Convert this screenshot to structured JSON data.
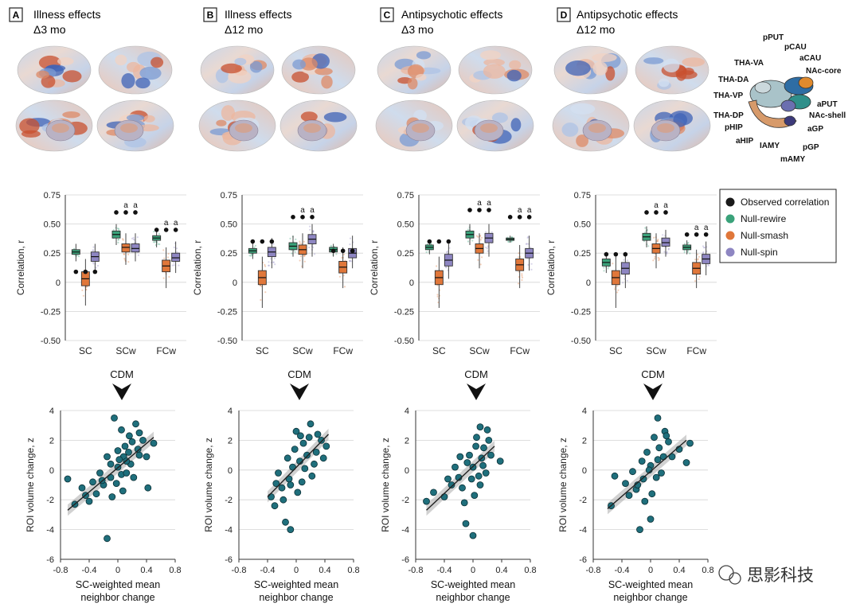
{
  "panels": [
    {
      "letter": "A",
      "title": "Illness effects",
      "subtitle": "Δ3 mo"
    },
    {
      "letter": "B",
      "title": "Illness effects",
      "subtitle": "Δ12 mo"
    },
    {
      "letter": "C",
      "title": "Antipsychotic effects",
      "subtitle": "Δ3 mo"
    },
    {
      "letter": "D",
      "title": "Antipsychotic effects",
      "subtitle": "Δ12 mo"
    }
  ],
  "subcortical_labels": [
    "pPUT",
    "pCAU",
    "aCAU",
    "THA-VA",
    "NAc-core",
    "THA-DA",
    "THA-VP",
    "aPUT",
    "NAc-shell",
    "THA-DP",
    "aGP",
    "pHIP",
    "aHIP",
    "IAMY",
    "pGP",
    "mAMY"
  ],
  "legend": [
    {
      "label": "Observed correlation",
      "color": "#1a1a1a"
    },
    {
      "label": "Null-rewire",
      "color": "#3aa27a"
    },
    {
      "label": "Null-smash",
      "color": "#e0773a"
    },
    {
      "label": "Null-spin",
      "color": "#8e86c2"
    }
  ],
  "cdm_label": "CDM",
  "significance_mark": "a",
  "watermark": "思影科技",
  "chart_data": [
    {
      "type": "box",
      "panel": "A",
      "categories": [
        "SC",
        "SCw",
        "FCw"
      ],
      "ylabel": "Correlation, r",
      "ylim": [
        -0.5,
        0.75
      ],
      "yticks": [
        "0.75",
        "0.50",
        "0.25",
        "0",
        "-0.25",
        "-0.50"
      ],
      "observed": [
        0.09,
        0.6,
        0.45
      ],
      "significant": [
        false,
        true,
        true
      ],
      "series": [
        {
          "name": "Null-rewire",
          "median": [
            0.26,
            0.41,
            0.38
          ],
          "q1": [
            0.24,
            0.38,
            0.36
          ],
          "q3": [
            0.28,
            0.44,
            0.4
          ],
          "lo": [
            0.18,
            0.32,
            0.3
          ],
          "hi": [
            0.33,
            0.5,
            0.45
          ]
        },
        {
          "name": "Null-smash",
          "median": [
            0.03,
            0.3,
            0.14
          ],
          "q1": [
            -0.03,
            0.26,
            0.09
          ],
          "q3": [
            0.09,
            0.33,
            0.19
          ],
          "lo": [
            -0.2,
            0.15,
            -0.05
          ],
          "hi": [
            0.2,
            0.42,
            0.3
          ]
        },
        {
          "name": "Null-spin",
          "median": [
            0.22,
            0.29,
            0.21
          ],
          "q1": [
            0.18,
            0.26,
            0.18
          ],
          "q3": [
            0.26,
            0.33,
            0.25
          ],
          "lo": [
            0.08,
            0.18,
            0.08
          ],
          "hi": [
            0.33,
            0.42,
            0.35
          ]
        }
      ]
    },
    {
      "type": "box",
      "panel": "B",
      "categories": [
        "SC",
        "SCw",
        "FCw"
      ],
      "ylabel": "Correlation, r",
      "ylim": [
        -0.5,
        0.75
      ],
      "yticks": [
        "0.75",
        "0.50",
        "0.25",
        "0",
        "-0.25",
        "-0.50"
      ],
      "observed": [
        0.35,
        0.56,
        0.27
      ],
      "significant": [
        false,
        true,
        false
      ],
      "series": [
        {
          "name": "Null-rewire",
          "median": [
            0.27,
            0.31,
            0.28
          ],
          "q1": [
            0.25,
            0.28,
            0.26
          ],
          "q3": [
            0.29,
            0.34,
            0.3
          ],
          "lo": [
            0.2,
            0.22,
            0.22
          ],
          "hi": [
            0.34,
            0.4,
            0.33
          ]
        },
        {
          "name": "Null-smash",
          "median": [
            0.04,
            0.28,
            0.13
          ],
          "q1": [
            -0.02,
            0.24,
            0.08
          ],
          "q3": [
            0.1,
            0.32,
            0.18
          ],
          "lo": [
            -0.22,
            0.12,
            -0.05
          ],
          "hi": [
            0.22,
            0.42,
            0.3
          ]
        },
        {
          "name": "Null-spin",
          "median": [
            0.26,
            0.37,
            0.25
          ],
          "q1": [
            0.22,
            0.33,
            0.21
          ],
          "q3": [
            0.3,
            0.41,
            0.29
          ],
          "lo": [
            0.12,
            0.22,
            0.12
          ],
          "hi": [
            0.38,
            0.5,
            0.4
          ]
        }
      ]
    },
    {
      "type": "box",
      "panel": "C",
      "categories": [
        "SC",
        "SCw",
        "FCw"
      ],
      "ylabel": "Correlation, r",
      "ylim": [
        -0.5,
        0.75
      ],
      "yticks": [
        "0.75",
        "0.50",
        "0.25",
        "0",
        "-0.25",
        "-0.50"
      ],
      "observed": [
        0.35,
        0.62,
        0.56
      ],
      "significant": [
        false,
        true,
        true
      ],
      "series": [
        {
          "name": "Null-rewire",
          "median": [
            0.3,
            0.41,
            0.37
          ],
          "q1": [
            0.28,
            0.38,
            0.36
          ],
          "q3": [
            0.32,
            0.44,
            0.38
          ],
          "lo": [
            0.24,
            0.32,
            0.34
          ],
          "hi": [
            0.36,
            0.5,
            0.4
          ]
        },
        {
          "name": "Null-smash",
          "median": [
            0.04,
            0.29,
            0.15
          ],
          "q1": [
            -0.02,
            0.25,
            0.1
          ],
          "q3": [
            0.1,
            0.33,
            0.2
          ],
          "lo": [
            -0.22,
            0.12,
            -0.05
          ],
          "hi": [
            0.22,
            0.42,
            0.32
          ]
        },
        {
          "name": "Null-spin",
          "median": [
            0.19,
            0.38,
            0.25
          ],
          "q1": [
            0.14,
            0.34,
            0.21
          ],
          "q3": [
            0.24,
            0.42,
            0.29
          ],
          "lo": [
            0.03,
            0.22,
            0.1
          ],
          "hi": [
            0.33,
            0.5,
            0.4
          ]
        }
      ]
    },
    {
      "type": "box",
      "panel": "D",
      "categories": [
        "SC",
        "SCw",
        "FCw"
      ],
      "ylabel": "Correlation, r",
      "ylim": [
        -0.5,
        0.75
      ],
      "yticks": [
        "0.75",
        "0.50",
        "0.25",
        "0",
        "-0.25",
        "-0.50"
      ],
      "observed": [
        0.24,
        0.6,
        0.41
      ],
      "significant": [
        false,
        true,
        true
      ],
      "series": [
        {
          "name": "Null-rewire",
          "median": [
            0.17,
            0.39,
            0.3
          ],
          "q1": [
            0.14,
            0.36,
            0.28
          ],
          "q3": [
            0.2,
            0.42,
            0.32
          ],
          "lo": [
            0.08,
            0.3,
            0.24
          ],
          "hi": [
            0.26,
            0.48,
            0.36
          ]
        },
        {
          "name": "Null-smash",
          "median": [
            0.04,
            0.29,
            0.12
          ],
          "q1": [
            -0.02,
            0.25,
            0.07
          ],
          "q3": [
            0.1,
            0.33,
            0.17
          ],
          "lo": [
            -0.22,
            0.12,
            -0.05
          ],
          "hi": [
            0.22,
            0.42,
            0.28
          ]
        },
        {
          "name": "Null-spin",
          "median": [
            0.12,
            0.34,
            0.2
          ],
          "q1": [
            0.07,
            0.31,
            0.16
          ],
          "q3": [
            0.17,
            0.38,
            0.24
          ],
          "lo": [
            -0.05,
            0.22,
            0.06
          ],
          "hi": [
            0.26,
            0.45,
            0.35
          ]
        }
      ]
    },
    {
      "type": "scatter",
      "panel": "A",
      "xlabel": "SC-weighted mean neighbor change",
      "ylabel": "ROI volume change, z",
      "xlim": [
        -0.8,
        0.8
      ],
      "ylim": [
        -6,
        4
      ],
      "xticks": [
        "-0.8",
        "-0.4",
        "0",
        "0.4",
        "0.8"
      ],
      "yticks": [
        "4",
        "2",
        "0",
        "-2",
        "-4",
        "-6"
      ],
      "fit": {
        "x": [
          -0.7,
          0.5
        ],
        "y": [
          -2.7,
          2.2
        ]
      },
      "points": [
        [
          -0.05,
          3.5
        ],
        [
          -0.15,
          -4.6
        ],
        [
          0.42,
          -1.2
        ],
        [
          0.25,
          3.1
        ],
        [
          0.3,
          2.5
        ],
        [
          -0.6,
          -2.3
        ],
        [
          -0.7,
          -0.6
        ],
        [
          0.5,
          1.8
        ],
        [
          0.05,
          2.7
        ],
        [
          0.1,
          1.6
        ],
        [
          0.15,
          1.2
        ],
        [
          0.18,
          0.4
        ],
        [
          -0.1,
          -0.5
        ],
        [
          -0.2,
          -1
        ],
        [
          0.0,
          0.2
        ],
        [
          0.05,
          -0.3
        ],
        [
          -0.3,
          -1.6
        ],
        [
          -0.4,
          -2.1
        ],
        [
          0.2,
          1.9
        ],
        [
          0.08,
          0.9
        ],
        [
          -0.02,
          -0.9
        ],
        [
          0.12,
          0.6
        ],
        [
          -0.25,
          -0.2
        ],
        [
          0.3,
          1.0
        ],
        [
          0.35,
          2.0
        ],
        [
          -0.5,
          -1.2
        ],
        [
          -0.15,
          0.9
        ],
        [
          0.22,
          -0.5
        ],
        [
          0.4,
          0.9
        ],
        [
          -0.35,
          -0.8
        ],
        [
          0.0,
          1.3
        ],
        [
          0.07,
          -1.4
        ],
        [
          -0.1,
          0.4
        ],
        [
          0.16,
          2.3
        ],
        [
          -0.45,
          -1.7
        ],
        [
          0.28,
          1.4
        ],
        [
          -0.08,
          -1.8
        ],
        [
          0.02,
          0.7
        ],
        [
          -0.22,
          -0.7
        ],
        [
          0.12,
          -0.2
        ]
      ]
    },
    {
      "type": "scatter",
      "panel": "B",
      "xlabel": "SC-weighted mean neighbor change",
      "ylabel": "ROI volume change, z",
      "xlim": [
        -0.8,
        0.8
      ],
      "ylim": [
        -6,
        4
      ],
      "xticks": [
        "-0.8",
        "-0.4",
        "0",
        "0.4",
        "0.8"
      ],
      "yticks": [
        "4",
        "2",
        "0",
        "-2",
        "-4",
        "-6"
      ],
      "fit": {
        "x": [
          -0.4,
          0.45
        ],
        "y": [
          -1.8,
          2.4
        ]
      },
      "points": [
        [
          -0.08,
          -4.0
        ],
        [
          -0.15,
          -3.5
        ],
        [
          0.2,
          3.1
        ],
        [
          0.3,
          2.4
        ],
        [
          -0.35,
          -1.8
        ],
        [
          0.42,
          1.6
        ],
        [
          0.0,
          2.6
        ],
        [
          0.1,
          1.8
        ],
        [
          0.05,
          0.6
        ],
        [
          -0.1,
          -0.6
        ],
        [
          -0.2,
          -1.2
        ],
        [
          0.15,
          1.0
        ],
        [
          0.25,
          0.4
        ],
        [
          -0.05,
          0.2
        ],
        [
          0.08,
          -0.8
        ],
        [
          -0.25,
          -0.2
        ],
        [
          0.35,
          2.0
        ],
        [
          -0.3,
          -2.4
        ],
        [
          0.18,
          2.2
        ],
        [
          0.02,
          -1.5
        ],
        [
          -0.12,
          0.8
        ],
        [
          0.28,
          1.2
        ],
        [
          -0.18,
          -2.0
        ],
        [
          0.12,
          0.1
        ],
        [
          -0.02,
          1.4
        ],
        [
          0.22,
          -0.4
        ],
        [
          0.38,
          0.8
        ],
        [
          -0.28,
          -0.9
        ],
        [
          0.06,
          2.3
        ],
        [
          -0.08,
          -1.0
        ]
      ]
    },
    {
      "type": "scatter",
      "panel": "C",
      "xlabel": "SC-weighted mean neighbor change",
      "ylabel": "ROI volume change, z",
      "xlim": [
        -0.8,
        0.8
      ],
      "ylim": [
        -6,
        4
      ],
      "xticks": [
        "-0.8",
        "-0.4",
        "0",
        "0.4",
        "0.8"
      ],
      "yticks": [
        "4",
        "2",
        "0",
        "-2",
        "-4",
        "-6"
      ],
      "fit": {
        "x": [
          -0.65,
          0.3
        ],
        "y": [
          -2.7,
          1.6
        ]
      },
      "points": [
        [
          0.0,
          -4.4
        ],
        [
          -0.1,
          -3.6
        ],
        [
          0.1,
          2.9
        ],
        [
          0.2,
          2.7
        ],
        [
          0.38,
          0.6
        ],
        [
          -0.65,
          -2.1
        ],
        [
          -0.55,
          -1.5
        ],
        [
          0.05,
          2.2
        ],
        [
          -0.05,
          1.0
        ],
        [
          0.15,
          1.5
        ],
        [
          -0.2,
          -0.5
        ],
        [
          -0.3,
          -1.0
        ],
        [
          0.0,
          0.2
        ],
        [
          0.08,
          -0.4
        ],
        [
          -0.4,
          -1.8
        ],
        [
          0.12,
          0.8
        ],
        [
          -0.15,
          -1.2
        ],
        [
          0.02,
          -1.7
        ],
        [
          0.25,
          1.0
        ],
        [
          -0.08,
          0.5
        ],
        [
          0.18,
          -0.2
        ],
        [
          -0.25,
          0.2
        ],
        [
          0.1,
          -1.0
        ],
        [
          -0.35,
          -0.6
        ],
        [
          0.04,
          1.6
        ],
        [
          -0.12,
          -2.2
        ],
        [
          0.22,
          2.0
        ],
        [
          -0.02,
          -0.6
        ],
        [
          0.14,
          0.3
        ],
        [
          -0.18,
          0.9
        ]
      ]
    },
    {
      "type": "scatter",
      "panel": "D",
      "xlabel": "SC-weighted mean neighbor change",
      "ylabel": "ROI volume change, z",
      "xlim": [
        -0.8,
        0.8
      ],
      "ylim": [
        -6,
        4
      ],
      "xticks": [
        "-0.8",
        "-0.4",
        "0",
        "0.4",
        "0.8"
      ],
      "yticks": [
        "4",
        "2",
        "0",
        "-2",
        "-4",
        "-6"
      ],
      "fit": {
        "x": [
          -0.6,
          0.5
        ],
        "y": [
          -2.6,
          2.0
        ]
      },
      "points": [
        [
          -0.15,
          -4.0
        ],
        [
          0.0,
          -3.3
        ],
        [
          0.1,
          3.5
        ],
        [
          0.2,
          2.6
        ],
        [
          0.5,
          0.5
        ],
        [
          -0.55,
          -2.4
        ],
        [
          -0.5,
          -0.4
        ],
        [
          0.55,
          1.8
        ],
        [
          0.05,
          2.2
        ],
        [
          0.12,
          1.5
        ],
        [
          -0.1,
          -0.6
        ],
        [
          -0.2,
          -1.3
        ],
        [
          0.0,
          0.3
        ],
        [
          0.08,
          -0.5
        ],
        [
          -0.3,
          -1.7
        ],
        [
          0.18,
          0.9
        ],
        [
          -0.05,
          1.2
        ],
        [
          0.25,
          1.9
        ],
        [
          -0.25,
          -0.1
        ],
        [
          0.3,
          0.9
        ],
        [
          0.02,
          -1.6
        ],
        [
          -0.12,
          0.6
        ],
        [
          0.15,
          -0.2
        ],
        [
          -0.35,
          -0.9
        ],
        [
          0.4,
          1.4
        ],
        [
          -0.08,
          -2.1
        ],
        [
          0.22,
          2.3
        ],
        [
          -0.02,
          0.0
        ],
        [
          0.1,
          0.7
        ],
        [
          -0.18,
          -1.0
        ]
      ]
    }
  ]
}
